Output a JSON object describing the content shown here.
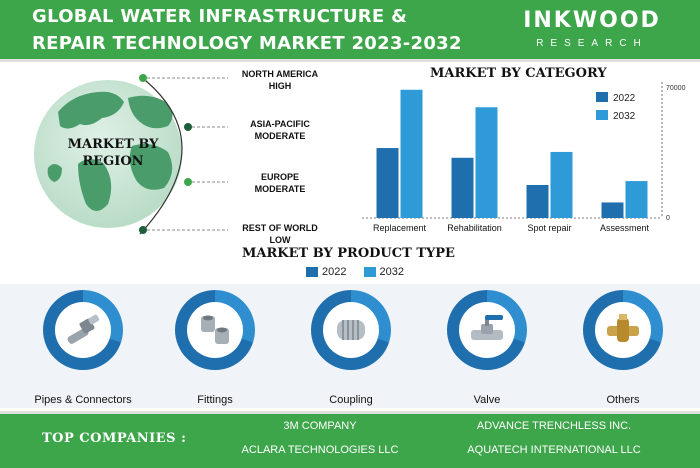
{
  "header": {
    "title_line1": "GLOBAL WATER INFRASTRUCTURE &",
    "title_line2": "REPAIR TECHNOLOGY MARKET 2023-2032",
    "brand_name": "INKWOOD",
    "brand_sub": "RESEARCH"
  },
  "region": {
    "title_line1": "MARKET BY",
    "title_line2": "REGION",
    "items": [
      {
        "name": "NORTH AMERICA",
        "level": "HIGH"
      },
      {
        "name": "ASIA-PACIFIC",
        "level": "MODERATE"
      },
      {
        "name": "EUROPE",
        "level": "MODERATE"
      },
      {
        "name": "REST OF WORLD",
        "level": "LOW"
      }
    ]
  },
  "chart_data": {
    "type": "bar",
    "title": "MARKET BY CATEGORY",
    "categories": [
      "Replacement",
      "Rehabilitation",
      "Spot repair",
      "Assessment"
    ],
    "series": [
      {
        "name": "2022",
        "values": [
          36000,
          31000,
          17000,
          8000
        ]
      },
      {
        "name": "2032",
        "values": [
          66000,
          57000,
          34000,
          19000
        ]
      }
    ],
    "y_tick_labels": [
      "70000",
      "0"
    ],
    "ylim": [
      0,
      70000
    ],
    "grid": false,
    "legend_position": "top-right",
    "colors": {
      "2022": "#1f6fae",
      "2032": "#2e9ad8"
    }
  },
  "product": {
    "title": "MARKET BY PRODUCT TYPE",
    "legend": [
      "2022",
      "2032"
    ],
    "items": [
      {
        "label": "Pipes & Connectors",
        "icon": "pipe-connector-icon"
      },
      {
        "label": "Fittings",
        "icon": "fittings-icon"
      },
      {
        "label": "Coupling",
        "icon": "coupling-icon"
      },
      {
        "label": "Valve",
        "icon": "valve-icon"
      },
      {
        "label": "Others",
        "icon": "brass-fitting-icon"
      }
    ]
  },
  "companies": {
    "title": "TOP COMPANIES :",
    "list": [
      "3M COMPANY",
      "ADVANCE TRENCHLESS INC.",
      "ACLARA TECHNOLOGIES LLC",
      "AQUATECH INTERNATIONAL LLC"
    ]
  },
  "colors": {
    "green": "#3ea64a",
    "dark_blue": "#1f6fae",
    "light_blue": "#2e9ad8",
    "globe": "#4a9d6a"
  }
}
